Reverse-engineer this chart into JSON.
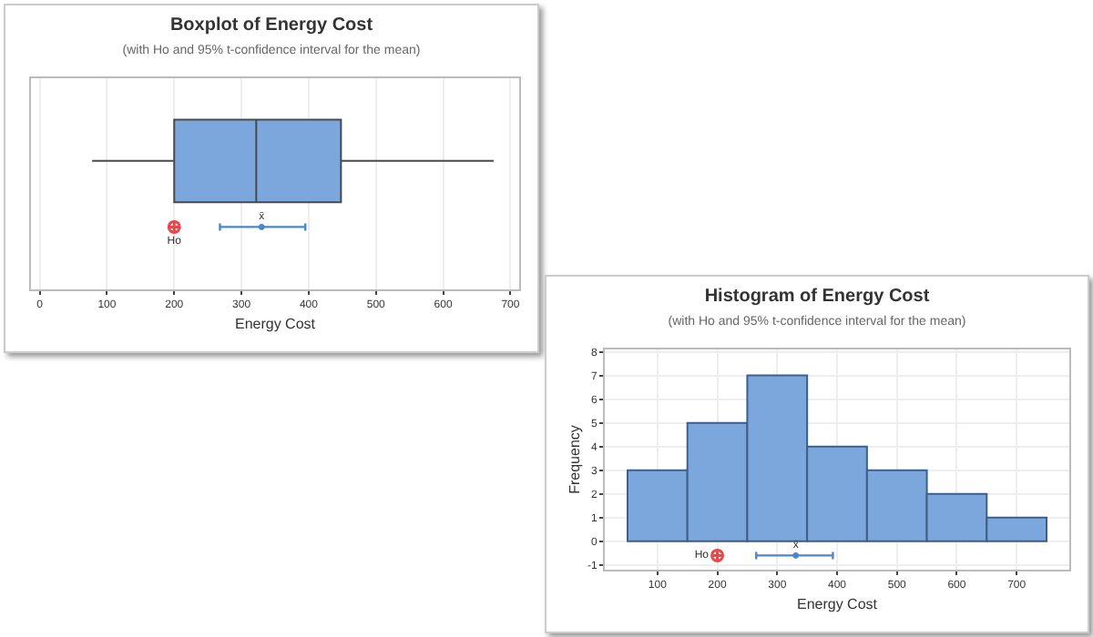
{
  "chart_data": [
    {
      "type": "box",
      "title": "Boxplot of Energy Cost",
      "subtitle": "(with Ho and 95% t-confidence interval for the mean)",
      "xlabel": "Energy Cost",
      "orientation": "horizontal",
      "categories": [
        null
      ],
      "color": "#7ba7dc",
      "boxes": [
        {
          "low": 78,
          "q1": 200,
          "median": 322,
          "q3": 448,
          "high": 675
        }
      ],
      "series": [
        {
          "type": "scatter",
          "name": "Ho",
          "color": "#e8474c",
          "marker": "cross",
          "values": [
            200
          ]
        },
        {
          "type": "scatter",
          "name": "x̄",
          "color": "#4a86c8",
          "marker": "circle",
          "values": [
            330
          ],
          "errors": [
            [
              268,
              395
            ]
          ]
        }
      ],
      "xlim": [
        -13,
        713
      ],
      "xticks": [
        0,
        100,
        200,
        300,
        400,
        500,
        600,
        700
      ],
      "grid": "x",
      "tick_labels": "x"
    },
    {
      "type": "histogram",
      "title": "Histogram of Energy Cost",
      "subtitle": "(with Ho and 95% t-confidence interval for the mean)",
      "xlabel": "Energy Cost",
      "ylabel": "Frequency",
      "color": "#7ba7dc",
      "bins": [
        50,
        150,
        250,
        350,
        450,
        550,
        650,
        750
      ],
      "values": [
        3,
        5,
        7,
        4,
        3,
        2,
        1
      ],
      "series": [
        {
          "type": "scatter",
          "name": "Ho",
          "color": "#e8474c",
          "marker": "cross",
          "x": [
            200
          ],
          "values": [
            -0.6
          ]
        },
        {
          "type": "scatter",
          "name": "x̄",
          "color": "#4a86c8",
          "marker": "circle",
          "x": [
            331
          ],
          "values": [
            -0.6
          ],
          "xerrors": [
            [
              265,
              393
            ]
          ]
        }
      ],
      "xlim": [
        12,
        788
      ],
      "xticks": [
        100,
        200,
        300,
        400,
        500,
        600,
        700
      ],
      "ylim": [
        -1.2,
        8.1
      ],
      "yticks": [
        -1,
        0,
        1,
        2,
        3,
        4,
        5,
        6,
        7,
        8
      ],
      "grid": true
    }
  ]
}
